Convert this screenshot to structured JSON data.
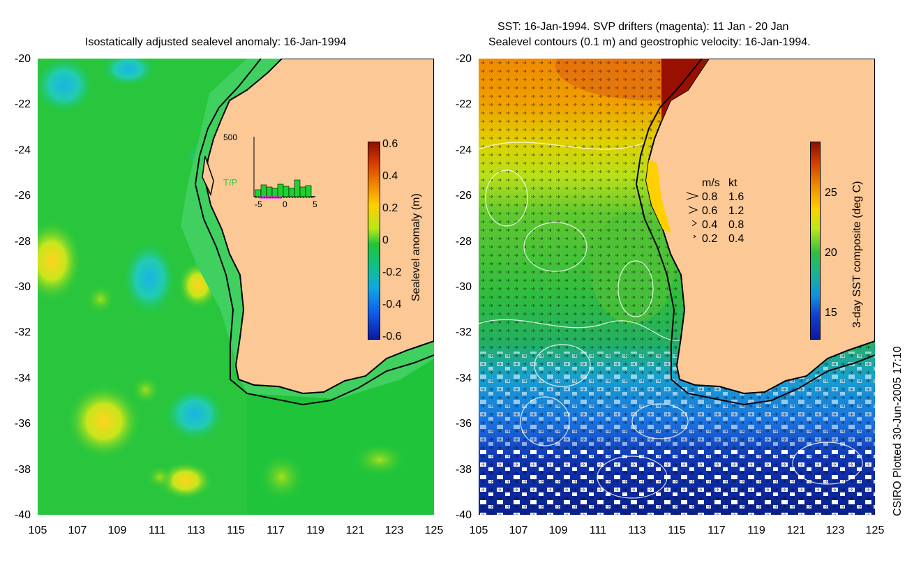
{
  "left": {
    "title": "Isostatically adjusted sealevel anomaly: 16-Jan-1994",
    "y_ticks": [
      "-20",
      "-22",
      "-24",
      "-26",
      "-28",
      "-30",
      "-32",
      "-34",
      "-36",
      "-38",
      "-40"
    ],
    "x_ticks": [
      "105",
      "107",
      "109",
      "111",
      "113",
      "115",
      "117",
      "119",
      "121",
      "123",
      "125"
    ],
    "colorbar": {
      "label": "Sealevel anomaly (m)",
      "ticks": [
        "0.6",
        "0.4",
        "0.2",
        "0",
        "-0.2",
        "-0.4",
        "-0.6"
      ]
    },
    "inset": {
      "y_label": "500",
      "series_label": "T/P",
      "x_ticks": [
        "-5",
        "0",
        "5"
      ]
    }
  },
  "right": {
    "title_line1": "SST: 16-Jan-1994. SVP drifters (magenta): 11 Jan - 20 Jan",
    "title_line2": "Sealevel contours (0.1 m) and geostrophic velocity: 16-Jan-1994.",
    "y_ticks": [
      "-20",
      "-22",
      "-24",
      "-26",
      "-28",
      "-30",
      "-32",
      "-34",
      "-36",
      "-38",
      "-40"
    ],
    "x_ticks": [
      "105",
      "107",
      "109",
      "111",
      "113",
      "115",
      "117",
      "119",
      "121",
      "123",
      "125"
    ],
    "colorbar": {
      "label": "3-day SST composite (deg C)",
      "ticks": [
        "25",
        "20",
        "15"
      ]
    },
    "legend": {
      "header_ms": "m/s",
      "header_kt": "kt",
      "rows": [
        {
          "ms": "0.8",
          "kt": "1.6"
        },
        {
          "ms": "0.6",
          "kt": "1.2"
        },
        {
          "ms": "0.4",
          "kt": "0.8"
        },
        {
          "ms": "0.2",
          "kt": "0.4"
        }
      ]
    }
  },
  "credit": "CSIRO Plotted 30-Jun-2005 17:10",
  "colors": {
    "land": "#fbc896",
    "ocean_green": "#1fc43a",
    "coast": "#000000"
  }
}
